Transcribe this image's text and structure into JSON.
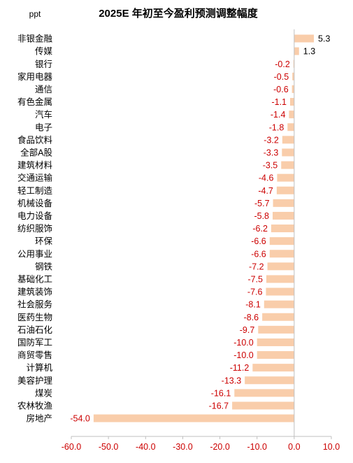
{
  "chart_data": {
    "type": "bar",
    "orientation": "horizontal",
    "title": "2025E 年初至今盈利预测调整幅度",
    "unit_label": "ppt",
    "categories": [
      "非银金融",
      "传媒",
      "银行",
      "家用电器",
      "通信",
      "有色金属",
      "汽车",
      "电子",
      "食品饮料",
      "全部A股",
      "建筑材料",
      "交通运输",
      "轻工制造",
      "机械设备",
      "电力设备",
      "纺织服饰",
      "环保",
      "公用事业",
      "钢铁",
      "基础化工",
      "建筑装饰",
      "社会服务",
      "医药生物",
      "石油石化",
      "国防军工",
      "商贸零售",
      "计算机",
      "美容护理",
      "煤炭",
      "农林牧渔",
      "房地产"
    ],
    "values": [
      5.3,
      1.3,
      -0.2,
      -0.5,
      -0.6,
      -1.1,
      -1.4,
      -1.8,
      -3.2,
      -3.3,
      -3.5,
      -4.6,
      -4.7,
      -5.7,
      -5.8,
      -6.2,
      -6.6,
      -6.6,
      -7.2,
      -7.5,
      -7.6,
      -8.1,
      -8.6,
      -9.7,
      -10.0,
      -10.0,
      -11.2,
      -13.3,
      -16.1,
      -16.7,
      -54.0
    ],
    "value_labels": [
      "5.3",
      "1.3",
      "-0.2",
      "-0.5",
      "-0.6",
      "-1.1",
      "-1.4",
      "-1.8",
      "-3.2",
      "-3.3",
      "-3.5",
      "-4.6",
      "-4.7",
      "-5.7",
      "-5.8",
      "-6.2",
      "-6.6",
      "-6.6",
      "-7.2",
      "-7.5",
      "-7.6",
      "-8.1",
      "-8.6",
      "-9.7",
      "-10.0",
      "-10.0",
      "-11.2",
      "-13.3",
      "-16.1",
      "-16.7",
      "-54.0"
    ],
    "xlim": [
      -60,
      10
    ],
    "xticks": [
      -60,
      -50,
      -40,
      -30,
      -20,
      -10,
      0,
      10
    ],
    "xtick_labels": [
      "-60.0",
      "-50.0",
      "-40.0",
      "-30.0",
      "-20.0",
      "-10.0",
      "0.0",
      "10.0"
    ],
    "grid": false,
    "legend": "none",
    "colors": {
      "bar": "#f9cdaa",
      "negative_text": "#cc0000",
      "positive_text": "#000000",
      "axis": "#bfbfbf"
    }
  }
}
